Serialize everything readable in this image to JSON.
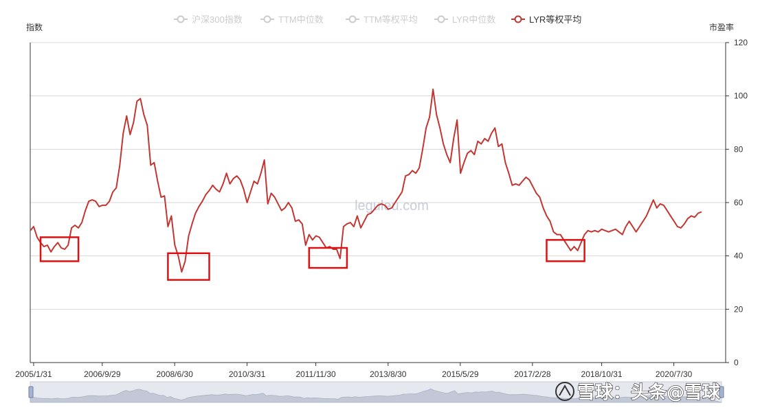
{
  "chart_data": {
    "type": "line",
    "left_axis_name": "指数",
    "right_axis_name": "市盈率",
    "legend": [
      {
        "name": "沪深300指数",
        "active": false
      },
      {
        "name": "TTM中位数",
        "active": false
      },
      {
        "name": "TTM等权平均",
        "active": false
      },
      {
        "name": "LYR中位数",
        "active": false
      },
      {
        "name": "LYR等权平均",
        "active": true
      }
    ],
    "x_ticks": [
      "2005/1/31",
      "2006/9/29",
      "2008/6/30",
      "2010/3/31",
      "2011/11/30",
      "2013/8/30",
      "2015/5/29",
      "2017/2/28",
      "2018/10/31",
      "2020/7/30"
    ],
    "y_right_ticks": [
      0,
      20,
      40,
      60,
      80,
      100,
      120
    ],
    "ylim": [
      0,
      120
    ],
    "x_range": [
      "2005/1/31",
      "2021/11/30"
    ],
    "grid": "horizontal",
    "series": [
      {
        "name": "LYR等权平均",
        "color": "#c23531",
        "points": [
          [
            "2005/01",
            49.5
          ],
          [
            "2005/02",
            51
          ],
          [
            "2005/03",
            47
          ],
          [
            "2005/04",
            45
          ],
          [
            "2005/05",
            43.5
          ],
          [
            "2005/06",
            44
          ],
          [
            "2005/07",
            41.5
          ],
          [
            "2005/08",
            43.5
          ],
          [
            "2005/09",
            45
          ],
          [
            "2005/10",
            43
          ],
          [
            "2005/11",
            42.5
          ],
          [
            "2005/12",
            44
          ],
          [
            "2006/01",
            50.5
          ],
          [
            "2006/02",
            51.5
          ],
          [
            "2006/03",
            50.5
          ],
          [
            "2006/04",
            52.5
          ],
          [
            "2006/05",
            57
          ],
          [
            "2006/06",
            60.5
          ],
          [
            "2006/07",
            61
          ],
          [
            "2006/08",
            60.5
          ],
          [
            "2006/09",
            58.5
          ],
          [
            "2006/10",
            59
          ],
          [
            "2006/11",
            59
          ],
          [
            "2006/12",
            60.5
          ],
          [
            "2007/01",
            64
          ],
          [
            "2007/02",
            65.5
          ],
          [
            "2007/03",
            74
          ],
          [
            "2007/04",
            86
          ],
          [
            "2007/05",
            92.5
          ],
          [
            "2007/06",
            85.5
          ],
          [
            "2007/07",
            90
          ],
          [
            "2007/08",
            98
          ],
          [
            "2007/09",
            99
          ],
          [
            "2007/10",
            93
          ],
          [
            "2007/11",
            89
          ],
          [
            "2007/12",
            74
          ],
          [
            "2008/01",
            75
          ],
          [
            "2008/02",
            68
          ],
          [
            "2008/03",
            62
          ],
          [
            "2008/04",
            62.5
          ],
          [
            "2008/05",
            51
          ],
          [
            "2008/06",
            55
          ],
          [
            "2008/07",
            44
          ],
          [
            "2008/08",
            40
          ],
          [
            "2008/09",
            34
          ],
          [
            "2008/10",
            38
          ],
          [
            "2008/11",
            47.5
          ],
          [
            "2008/12",
            52
          ],
          [
            "2009/01",
            56
          ],
          [
            "2009/02",
            58.5
          ],
          [
            "2009/03",
            60.5
          ],
          [
            "2009/04",
            63
          ],
          [
            "2009/05",
            64.5
          ],
          [
            "2009/06",
            66.5
          ],
          [
            "2009/07",
            65
          ],
          [
            "2009/08",
            64
          ],
          [
            "2009/09",
            67
          ],
          [
            "2009/10",
            71
          ],
          [
            "2009/11",
            67
          ],
          [
            "2009/12",
            69
          ],
          [
            "2010/01",
            70
          ],
          [
            "2010/02",
            68.5
          ],
          [
            "2010/03",
            65
          ],
          [
            "2010/04",
            60
          ],
          [
            "2010/05",
            64
          ],
          [
            "2010/06",
            68
          ],
          [
            "2010/07",
            67
          ],
          [
            "2010/08",
            71
          ],
          [
            "2010/09",
            76
          ],
          [
            "2010/10",
            59.5
          ],
          [
            "2010/11",
            63.5
          ],
          [
            "2010/12",
            62
          ],
          [
            "2011/01",
            59.5
          ],
          [
            "2011/02",
            57
          ],
          [
            "2011/03",
            58
          ],
          [
            "2011/04",
            60
          ],
          [
            "2011/05",
            58
          ],
          [
            "2011/06",
            53
          ],
          [
            "2011/07",
            53.5
          ],
          [
            "2011/08",
            52
          ],
          [
            "2011/09",
            44
          ],
          [
            "2011/10",
            48
          ],
          [
            "2011/11",
            46
          ],
          [
            "2011/12",
            47.5
          ],
          [
            "2012/01",
            47
          ],
          [
            "2012/02",
            45
          ],
          [
            "2012/03",
            43
          ],
          [
            "2012/04",
            43.5
          ],
          [
            "2012/05",
            42.5
          ],
          [
            "2012/06",
            42.5
          ],
          [
            "2012/07",
            39
          ],
          [
            "2012/08",
            51
          ],
          [
            "2012/09",
            52
          ],
          [
            "2012/10",
            52.5
          ],
          [
            "2012/11",
            51
          ],
          [
            "2012/12",
            55
          ],
          [
            "2013/01",
            50.5
          ],
          [
            "2013/02",
            53
          ],
          [
            "2013/03",
            55.5
          ],
          [
            "2013/04",
            56
          ],
          [
            "2013/05",
            57.5
          ],
          [
            "2013/06",
            59
          ],
          [
            "2013/07",
            59.5
          ],
          [
            "2013/08",
            59
          ],
          [
            "2013/09",
            57.5
          ],
          [
            "2013/10",
            58
          ],
          [
            "2013/11",
            60
          ],
          [
            "2013/12",
            62
          ],
          [
            "2014/01",
            64
          ],
          [
            "2014/02",
            70
          ],
          [
            "2014/03",
            70.5
          ],
          [
            "2014/04",
            72
          ],
          [
            "2014/05",
            71
          ],
          [
            "2014/06",
            73
          ],
          [
            "2014/07",
            80
          ],
          [
            "2014/08",
            88
          ],
          [
            "2014/09",
            92
          ],
          [
            "2014/10",
            102.5
          ],
          [
            "2014/11",
            93
          ],
          [
            "2014/12",
            88
          ],
          [
            "2015/01",
            82
          ],
          [
            "2015/02",
            78
          ],
          [
            "2015/03",
            75
          ],
          [
            "2015/04",
            84
          ],
          [
            "2015/05",
            91
          ],
          [
            "2015/06",
            71
          ],
          [
            "2015/07",
            75
          ],
          [
            "2015/08",
            78.5
          ],
          [
            "2015/09",
            79.5
          ],
          [
            "2015/10",
            78
          ],
          [
            "2015/11",
            83
          ],
          [
            "2015/12",
            82
          ],
          [
            "2016/01",
            84
          ],
          [
            "2016/02",
            83
          ],
          [
            "2016/03",
            86
          ],
          [
            "2016/04",
            88
          ],
          [
            "2016/05",
            81
          ],
          [
            "2016/06",
            82
          ],
          [
            "2016/07",
            75
          ],
          [
            "2016/08",
            71
          ],
          [
            "2016/09",
            66.5
          ],
          [
            "2016/10",
            67
          ],
          [
            "2016/11",
            66.5
          ],
          [
            "2016/12",
            68
          ],
          [
            "2017/01",
            69.5
          ],
          [
            "2017/02",
            68.5
          ],
          [
            "2017/03",
            66
          ],
          [
            "2017/04",
            63.5
          ],
          [
            "2017/05",
            62
          ],
          [
            "2017/06",
            58
          ],
          [
            "2017/07",
            55
          ],
          [
            "2017/08",
            53
          ],
          [
            "2017/09",
            49
          ],
          [
            "2017/10",
            48
          ],
          [
            "2017/11",
            48
          ],
          [
            "2017/12",
            46
          ],
          [
            "2018/01",
            44
          ],
          [
            "2018/02",
            42
          ],
          [
            "2018/03",
            43.5
          ],
          [
            "2018/04",
            42
          ],
          [
            "2018/05",
            45
          ],
          [
            "2018/06",
            48
          ],
          [
            "2018/07",
            49.5
          ],
          [
            "2018/08",
            49
          ],
          [
            "2018/09",
            49.5
          ],
          [
            "2018/10",
            49
          ],
          [
            "2018/11",
            50
          ],
          [
            "2018/12",
            49.5
          ],
          [
            "2019/01",
            49
          ],
          [
            "2019/02",
            49.5
          ],
          [
            "2019/03",
            50
          ],
          [
            "2019/04",
            49
          ],
          [
            "2019/05",
            48
          ],
          [
            "2019/06",
            51
          ],
          [
            "2019/07",
            53
          ],
          [
            "2019/08",
            51
          ],
          [
            "2019/09",
            49
          ],
          [
            "2019/10",
            51
          ],
          [
            "2019/11",
            53
          ],
          [
            "2019/12",
            55
          ],
          [
            "2020/01",
            58
          ],
          [
            "2020/02",
            61
          ],
          [
            "2020/03",
            58
          ],
          [
            "2020/04",
            59.5
          ],
          [
            "2020/05",
            59
          ],
          [
            "2020/06",
            57
          ],
          [
            "2020/07",
            55
          ],
          [
            "2020/08",
            53
          ],
          [
            "2020/09",
            51
          ],
          [
            "2020/10",
            50.5
          ],
          [
            "2020/11",
            52
          ],
          [
            "2020/12",
            54
          ],
          [
            "2021/01",
            55
          ],
          [
            "2021/02",
            54.5
          ],
          [
            "2021/03",
            56
          ],
          [
            "2021/04",
            56.5
          ]
        ]
      }
    ],
    "highlight_boxes": [
      {
        "from": "2005/04",
        "to": "2006/03",
        "low": 38,
        "high": 47
      },
      {
        "from": "2008/05",
        "to": "2009/05",
        "low": 31,
        "high": 41
      },
      {
        "from": "2011/10",
        "to": "2012/09",
        "low": 35.5,
        "high": 43
      },
      {
        "from": "2017/07",
        "to": "2018/06",
        "low": 38,
        "high": 46
      }
    ],
    "highlight_color": "#dd1111"
  },
  "watermark": "leguleu.com",
  "brand_overlay": "雪球：头条@雪球"
}
